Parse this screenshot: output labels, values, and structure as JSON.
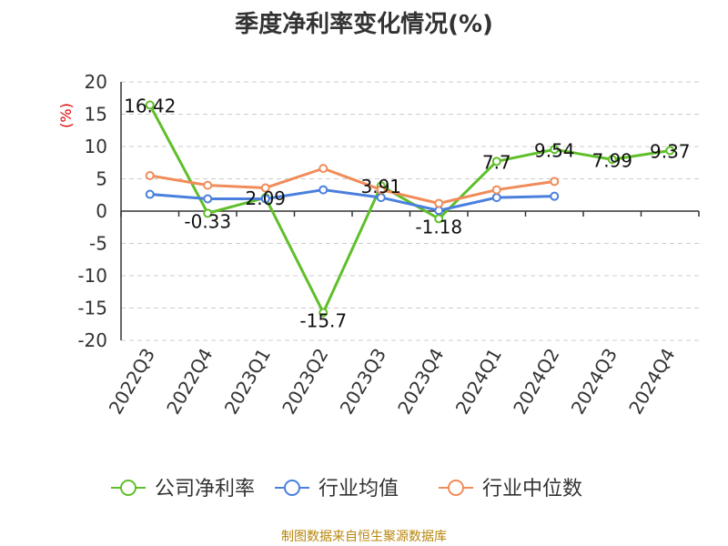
{
  "chart_data": {
    "type": "line",
    "title": "季度净利率变化情况(%)",
    "ylabel": "(%)",
    "ylim": [
      -20,
      20
    ],
    "yticks": [
      20,
      15,
      10,
      5,
      0,
      -5,
      -10,
      -15,
      -20
    ],
    "categories": [
      "2022Q3",
      "2022Q4",
      "2023Q1",
      "2023Q2",
      "2023Q3",
      "2023Q4",
      "2024Q1",
      "2024Q2",
      "2024Q3",
      "2024Q4"
    ],
    "series": [
      {
        "name": "公司净利率",
        "color": "#5fbf2a",
        "labeled": true,
        "values": [
          16.42,
          -0.33,
          2.09,
          -15.7,
          3.91,
          -1.18,
          7.7,
          9.54,
          7.99,
          9.37
        ],
        "labels": [
          "16.42",
          "-0.33",
          "2.09",
          "-15.7",
          "3.91",
          "-1.18",
          "7.7",
          "9.54",
          "7.99",
          "9.37"
        ]
      },
      {
        "name": "行业均值",
        "color": "#4a7fde",
        "labeled": false,
        "values": [
          2.6,
          1.9,
          1.9,
          3.3,
          2.1,
          0.1,
          2.1,
          2.3,
          null,
          null
        ]
      },
      {
        "name": "行业中位数",
        "color": "#f08c5a",
        "labeled": false,
        "values": [
          5.5,
          4.0,
          3.6,
          6.6,
          3.3,
          1.2,
          3.3,
          4.6,
          null,
          null
        ]
      }
    ],
    "grid": true,
    "legend": "bottom-center",
    "source": "制图数据来自恒生聚源数据库"
  }
}
